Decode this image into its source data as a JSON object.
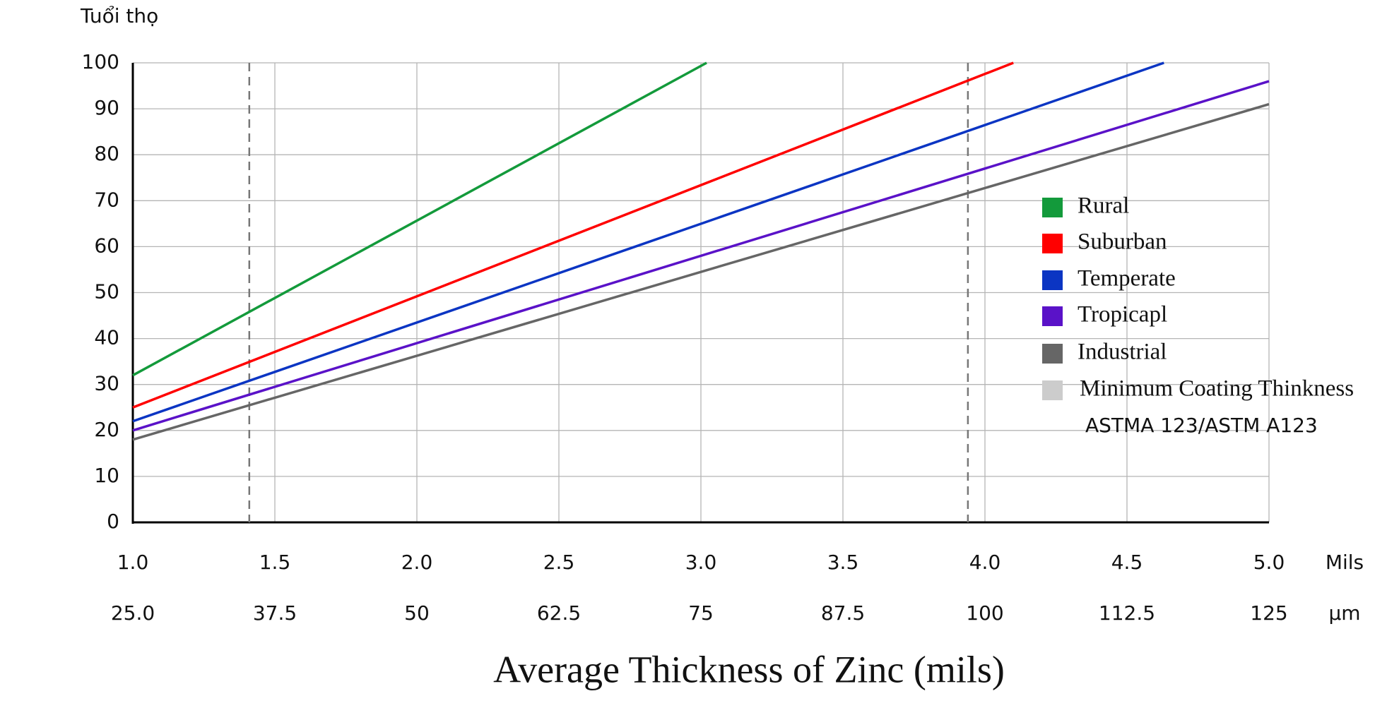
{
  "chart_data": {
    "type": "line",
    "y_label": "Tuổi thọ",
    "x_label": "Average Thickness of Zinc (mils)",
    "x_unit": "Mils",
    "x2_unit": "µm",
    "xlim": [
      1.0,
      5.0
    ],
    "xticks": [
      {
        "value": 1.0,
        "label": "1.0"
      },
      1.5,
      {
        "value": 2.0,
        "label": "2.0"
      },
      2.5,
      {
        "value": 3.0,
        "label": "3.0"
      },
      3.5,
      {
        "value": 4.0,
        "label": "4.0"
      },
      4.5,
      {
        "value": 5.0,
        "label": "5.0"
      }
    ],
    "x2lim": [
      25,
      125
    ],
    "x2ticks": [
      {
        "value": 25,
        "label": "25.0"
      },
      37.5,
      50,
      62.5,
      75,
      87.5,
      100,
      112.5,
      125
    ],
    "ylim": [
      0,
      100
    ],
    "yticks": [
      0,
      10,
      20,
      30,
      40,
      50,
      60,
      70,
      80,
      90,
      100
    ],
    "grid": true,
    "legend": "right",
    "series": [
      {
        "name": "Rural",
        "color": "#139a3b",
        "x": [
          1.0,
          3.02
        ],
        "values": [
          32,
          100
        ]
      },
      {
        "name": "Suburban",
        "color": "#ff0000",
        "x": [
          1.0,
          4.1
        ],
        "values": [
          25,
          100
        ]
      },
      {
        "name": "Temperate",
        "color": "#0b35c3",
        "x": [
          1.0,
          4.63
        ],
        "values": [
          22,
          100
        ]
      },
      {
        "name": "Tropicapl",
        "color": "#5a12c8",
        "x": [
          1.0,
          5.0
        ],
        "values": [
          20,
          96
        ]
      },
      {
        "name": "Industrial",
        "color": "#666666",
        "x": [
          1.0,
          5.0
        ],
        "values": [
          18,
          91
        ]
      }
    ],
    "reference_lines": {
      "name": "Minimum Coating Thinkness",
      "color": "#cccccc",
      "x": [
        1.41,
        3.94
      ],
      "note": "ASTMA 123/ASTM A123"
    }
  }
}
